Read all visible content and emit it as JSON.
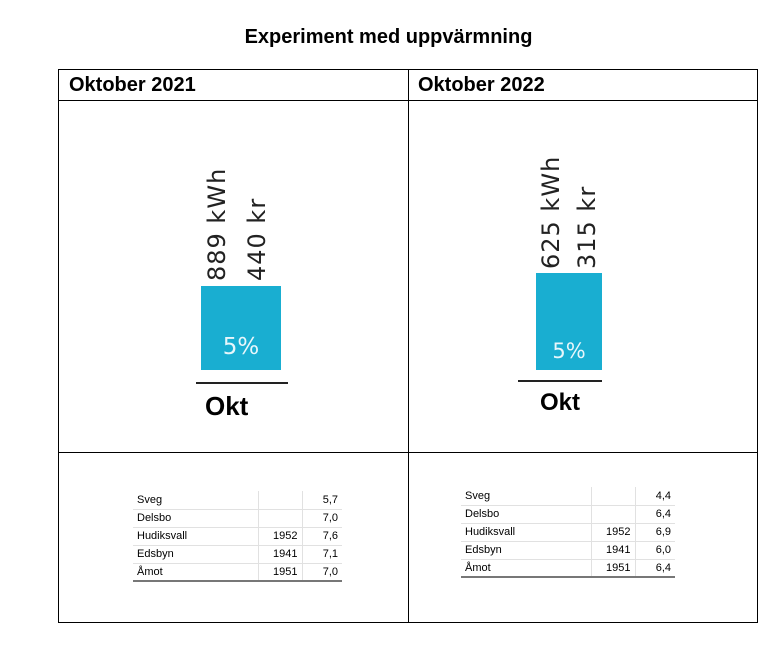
{
  "title": "Experiment med uppvärmning",
  "columns": [
    {
      "header": "Oktober 2021",
      "kwh": "889 kWh",
      "cost": "440 kr",
      "percent": "5%",
      "month": "Okt",
      "bar_color": "#19aed1",
      "table": [
        {
          "place": "Sveg",
          "year": "",
          "value": "5,7"
        },
        {
          "place": "Delsbo",
          "year": "",
          "value": "7,0"
        },
        {
          "place": "Hudiksvall",
          "year": "1952",
          "value": "7,6"
        },
        {
          "place": "Edsbyn",
          "year": "1941",
          "value": "7,1"
        },
        {
          "place": "Åmot",
          "year": "1951",
          "value": "7,0"
        }
      ]
    },
    {
      "header": "Oktober 2022",
      "kwh": "625 kWh",
      "cost": "315 kr",
      "percent": "5%",
      "month": "Okt",
      "bar_color": "#19aed1",
      "table": [
        {
          "place": "Sveg",
          "year": "",
          "value": "4,4"
        },
        {
          "place": "Delsbo",
          "year": "",
          "value": "6,4"
        },
        {
          "place": "Hudiksvall",
          "year": "1952",
          "value": "6,9"
        },
        {
          "place": "Edsbyn",
          "year": "1941",
          "value": "6,0"
        },
        {
          "place": "Åmot",
          "year": "1951",
          "value": "6,4"
        }
      ]
    }
  ]
}
